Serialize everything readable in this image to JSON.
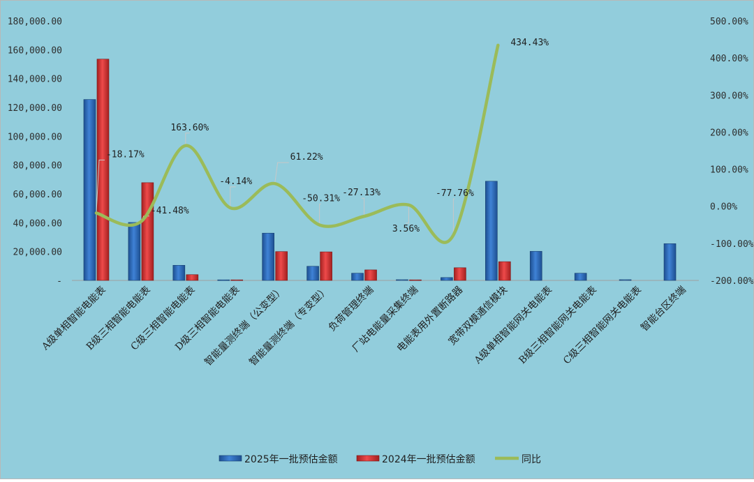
{
  "chart_data": {
    "type": "bar",
    "categories": [
      "A级单相智能电能表",
      "B级三相智能电能表",
      "C级三相智能电能表",
      "D级三相智能电能表",
      "智能量测终端（公变型）",
      "智能量测终端（专变型）",
      "负荷管理终端",
      "厂站电能量采集终端",
      "电能表用外置断路器",
      "宽带双模通信模块",
      "A级单相智能网关电能表",
      "B级三相智能网关电能表",
      "C级三相智能网关电能表",
      "智能台区终端"
    ],
    "series": [
      {
        "name": "2025年一批预估金额",
        "type": "bar",
        "axis": "left",
        "color": "#2E6FC4",
        "values": [
          125500,
          40200,
          10500,
          400,
          32800,
          9800,
          5000,
          500,
          2000,
          68800,
          20200,
          5000,
          500,
          25500
        ]
      },
      {
        "name": "2024年一批预估金额",
        "type": "bar",
        "axis": "left",
        "color": "#E03B3B",
        "values": [
          153500,
          67800,
          4000,
          400,
          20000,
          19800,
          7300,
          400,
          8800,
          13000,
          null,
          null,
          null,
          null
        ]
      },
      {
        "name": "同比",
        "type": "line",
        "axis": "right",
        "color": "#9BBB59",
        "values": [
          -18.17,
          -41.48,
          163.6,
          -4.14,
          61.22,
          -50.31,
          -27.13,
          3.56,
          -77.76,
          434.43,
          null,
          null,
          null,
          null
        ]
      }
    ],
    "data_labels": [
      "-18.17%",
      "-41.48%",
      "163.60%",
      "-4.14%",
      "61.22%",
      "-50.31%",
      "-27.13%",
      "3.56%",
      "-77.76%",
      "434.43%"
    ],
    "y_left": {
      "ylim": [
        0,
        180000
      ],
      "ticks": [
        "-",
        "20,000.00",
        "40,000.00",
        "60,000.00",
        "80,000.00",
        "100,000.00",
        "120,000.00",
        "140,000.00",
        "160,000.00",
        "180,000.00"
      ]
    },
    "y_right": {
      "ylim": [
        -200,
        500
      ],
      "ticks": [
        "-200.00%",
        "-100.00%",
        "0.00%",
        "100.00%",
        "200.00%",
        "300.00%",
        "400.00%",
        "500.00%"
      ]
    },
    "legend": {
      "position": "bottom",
      "entries": [
        "2025年一批预估金额",
        "2024年一批预估金额",
        "同比"
      ]
    },
    "grid": false
  }
}
